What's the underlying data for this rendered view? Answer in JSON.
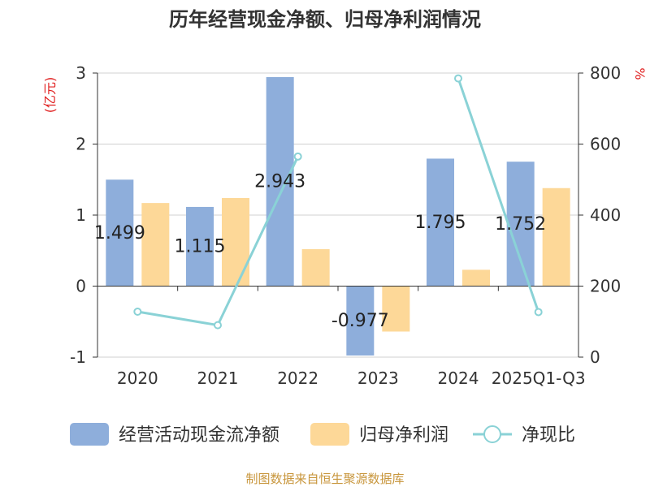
{
  "chart_data": {
    "type": "bar",
    "title": "历年经营现金净额、归母净利润情况",
    "left_axis_unit": "(亿元)",
    "right_axis_unit": "%",
    "categories": [
      "2020",
      "2021",
      "2022",
      "2023",
      "2024",
      "2025Q1-Q3"
    ],
    "left_ylim": [
      -1,
      3
    ],
    "left_ticks": [
      "-1",
      "0",
      "1",
      "2",
      "3"
    ],
    "right_ylim": [
      0,
      800
    ],
    "right_ticks": [
      "0",
      "200",
      "400",
      "600",
      "800"
    ],
    "series": [
      {
        "name": "经营活动现金流净额",
        "kind": "bar",
        "axis": "left",
        "color": "#8eaedb",
        "values": [
          1.499,
          1.115,
          2.943,
          -0.977,
          1.795,
          1.752
        ],
        "labels": [
          "1.499",
          "1.115",
          "2.943",
          "-0.977",
          "1.795",
          "1.752"
        ]
      },
      {
        "name": "归母净利润",
        "kind": "bar",
        "axis": "left",
        "color": "#fdd898",
        "values": [
          1.17,
          1.24,
          0.52,
          -0.64,
          0.23,
          1.38
        ]
      },
      {
        "name": "净现比",
        "kind": "line",
        "axis": "right",
        "color": "#8ad2d6",
        "values": [
          128,
          90,
          565,
          null,
          785,
          127
        ]
      }
    ],
    "grid": true,
    "legend_position": "bottom"
  },
  "footer": {
    "source": "制图数据来自恒生聚源数据库"
  }
}
